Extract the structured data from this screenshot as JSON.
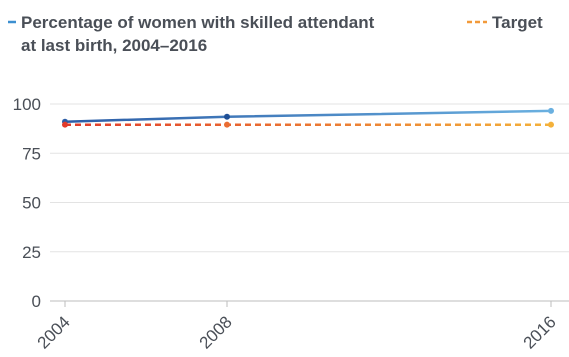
{
  "chart_data": {
    "type": "line",
    "x": [
      2004,
      2008,
      2016
    ],
    "xlim": [
      2004,
      2016
    ],
    "ylim": [
      0,
      100
    ],
    "yticks": [
      0,
      25,
      50,
      75,
      100
    ],
    "xticks": [
      "2004",
      "2008",
      "2016"
    ],
    "grid": true,
    "legend_position": "top",
    "series": [
      {
        "name": "Percentage of women with skilled attendant at last birth, 2004–2016",
        "legend_lines": [
          "Percentage of women with skilled attendant",
          "at last birth, 2004–2016"
        ],
        "values": [
          91,
          93.5,
          96.5
        ],
        "style": "solid",
        "color": "#2b5ca6",
        "color_end": "#6ab0e0"
      },
      {
        "name": "Target",
        "legend_lines": [
          "Target"
        ],
        "values": [
          89.5,
          89.5,
          89.5
        ],
        "style": "dashed",
        "color": "#e23b2b",
        "color_end": "#f4b13a"
      }
    ]
  }
}
